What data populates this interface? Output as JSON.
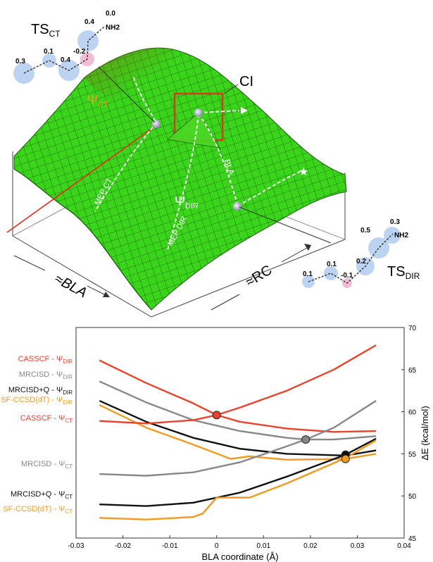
{
  "surface": {
    "ts_ct": {
      "main": "TS",
      "sub": "CT"
    },
    "ts_dir": {
      "main": "TS",
      "sub": "DIR"
    },
    "ci_label": "CI",
    "psi_ct": {
      "main": "Ψ",
      "sub": "CT"
    },
    "psi_dir": {
      "main": "Ψ",
      "sub": "DIR"
    },
    "axis_bla": "≈BLA",
    "axis_rc": "≈RC",
    "bla_path": "BLA",
    "mep_ct": "MEP CT",
    "mep_dir": "MEP DIR",
    "ct_molecule": {
      "charges": [
        "0.3",
        "0.1",
        "0.4",
        "-0.2",
        "0.4",
        "0.0"
      ],
      "group": "NH2"
    },
    "dir_molecule": {
      "charges": [
        "0.1",
        "0.1",
        "-0.1",
        "0.2",
        "0.5",
        "0.3"
      ],
      "group": "NH2"
    },
    "colors": {
      "surface": "#3ad41a",
      "mesh": "#1a5a0a",
      "ci_box": "#d93a1a",
      "psi_ct": "#f2a020",
      "psi_dir": "#ffffff"
    }
  },
  "chart_data": {
    "type": "line",
    "xlabel": "BLA coordinate (Å)",
    "ylabel": "ΔE (kcal/mol)",
    "xlim": [
      -0.03,
      0.04
    ],
    "ylim": [
      45,
      70
    ],
    "xticks": [
      -0.03,
      -0.02,
      -0.01,
      0,
      0.01,
      0.02,
      0.03,
      0.04
    ],
    "yticks": [
      45,
      50,
      55,
      60,
      65,
      70
    ],
    "xtick_labels": [
      "-0.03",
      "-0.02",
      "-0.01",
      "0",
      "0.01",
      "0.02",
      "0.03",
      "0.04"
    ],
    "ytick_labels": [
      "45",
      "50",
      "55",
      "60",
      "65",
      "70"
    ],
    "grid": false,
    "series": [
      {
        "name": "CASSCF - ΨDIR",
        "label_main": "CASSCF - Ψ",
        "label_sub": "DIR",
        "color": "#e8432d",
        "x": [
          -0.025,
          -0.015,
          -0.005,
          0.0,
          0.005,
          0.015,
          0.025,
          0.034
        ],
        "y": [
          66.1,
          63.4,
          61.0,
          59.6,
          58.8,
          58.0,
          57.6,
          57.7
        ]
      },
      {
        "name": "MRCISD - ΨDIR",
        "label_main": "MRCISD - Ψ",
        "label_sub": "DIR",
        "color": "#888888",
        "x": [
          -0.025,
          -0.015,
          -0.005,
          0.005,
          0.015,
          0.019,
          0.025,
          0.034
        ],
        "y": [
          63.6,
          61.1,
          59.0,
          57.7,
          56.9,
          56.7,
          56.7,
          57.1
        ]
      },
      {
        "name": "MRCISD+Q - ΨDIR",
        "label_main": "MRCISD+Q - Ψ",
        "label_sub": "DIR",
        "color": "#111111",
        "x": [
          -0.025,
          -0.015,
          -0.005,
          0.005,
          0.015,
          0.0275,
          0.034
        ],
        "y": [
          61.3,
          58.8,
          56.9,
          55.6,
          55.0,
          54.8,
          55.4
        ]
      },
      {
        "name": "SF-CCSD(dT) - ΨDIR",
        "label_main": "SF-CCSD(dT) - Ψ",
        "label_sub": "DIR",
        "color": "#f29a1f",
        "x": [
          -0.025,
          -0.015,
          -0.005,
          0.003,
          0.007,
          0.015,
          0.0275,
          0.034
        ],
        "y": [
          60.8,
          58.1,
          56.1,
          54.4,
          54.7,
          54.3,
          54.4,
          55.0
        ]
      },
      {
        "name": "CASSCF - ΨCT",
        "label_main": "CASSCF - Ψ",
        "label_sub": "CT",
        "color": "#e8432d",
        "x": [
          -0.025,
          -0.015,
          -0.005,
          0.0,
          0.005,
          0.015,
          0.025,
          0.034
        ],
        "y": [
          58.9,
          58.6,
          59.0,
          59.6,
          60.5,
          62.5,
          65.0,
          67.9
        ]
      },
      {
        "name": "MRCISD - ΨCT",
        "label_main": "MRCISD - Ψ",
        "label_sub": "CT",
        "color": "#888888",
        "x": [
          -0.025,
          -0.015,
          -0.005,
          0.005,
          0.015,
          0.019,
          0.025,
          0.034
        ],
        "y": [
          52.6,
          52.4,
          52.8,
          54.0,
          55.9,
          56.7,
          58.1,
          61.3
        ]
      },
      {
        "name": "MRCISD+Q - ΨCT",
        "label_main": "MRCISD+Q - Ψ",
        "label_sub": "CT",
        "color": "#111111",
        "x": [
          -0.025,
          -0.015,
          -0.005,
          0.005,
          0.015,
          0.0275,
          0.034
        ],
        "y": [
          49.0,
          48.8,
          49.2,
          50.4,
          52.3,
          54.9,
          56.8
        ]
      },
      {
        "name": "SF-CCSD(dT) - ΨCT",
        "label_main": "SF-CCSD(dT) - Ψ",
        "label_sub": "CT",
        "color": "#f29a1f",
        "x": [
          -0.025,
          -0.015,
          -0.005,
          -0.003,
          0.0,
          0.007,
          0.015,
          0.0275,
          0.034
        ],
        "y": [
          47.4,
          47.2,
          47.5,
          47.9,
          49.8,
          49.8,
          51.5,
          54.5,
          56.6
        ]
      }
    ],
    "crossings": [
      {
        "x": 0.0,
        "y": 59.6,
        "color": "#e8432d"
      },
      {
        "x": 0.019,
        "y": 56.7,
        "color": "#888888"
      },
      {
        "x": 0.0275,
        "y": 54.9,
        "color": "#111111"
      },
      {
        "x": 0.0275,
        "y": 54.4,
        "color": "#f29a1f"
      }
    ]
  }
}
